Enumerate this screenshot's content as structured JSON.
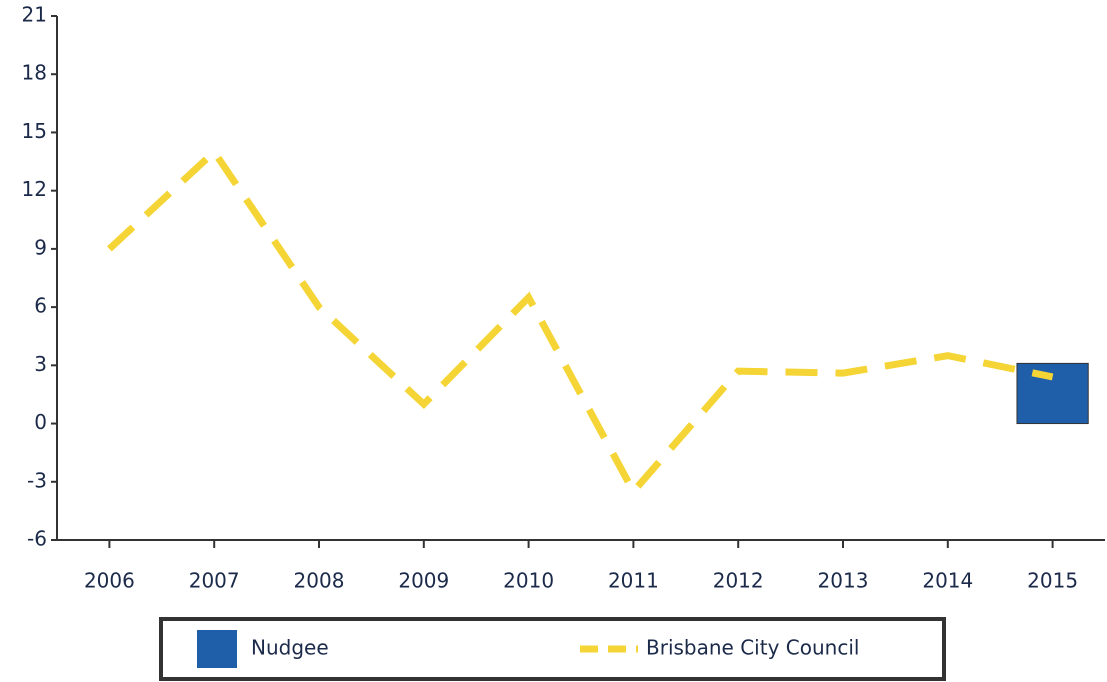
{
  "chart_data": {
    "type": "bar-line",
    "categories": [
      "2006",
      "2007",
      "2008",
      "2009",
      "2010",
      "2011",
      "2012",
      "2013",
      "2014",
      "2015"
    ],
    "series": [
      {
        "name": "Nudgee",
        "type": "bar",
        "color": "#1f5ea8",
        "values": [
          null,
          null,
          null,
          null,
          null,
          null,
          null,
          null,
          null,
          3.1
        ]
      },
      {
        "name": "Brisbane City Council",
        "type": "line",
        "dashed": true,
        "color": "#f5d535",
        "values": [
          9,
          14,
          6,
          1,
          6.5,
          -3.5,
          2.7,
          2.6,
          3.5,
          2.4
        ]
      }
    ],
    "ylim": [
      -6,
      21
    ],
    "yticks": [
      -6,
      -3,
      0,
      3,
      6,
      9,
      12,
      15,
      18,
      21
    ],
    "legend": "bottom"
  }
}
